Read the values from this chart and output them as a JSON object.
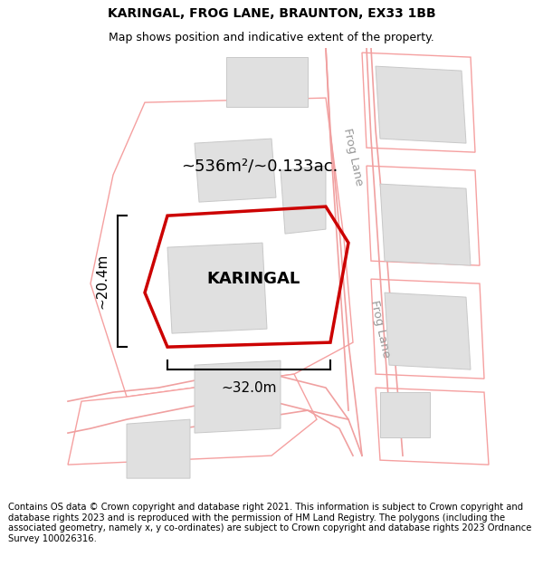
{
  "title_line1": "KARINGAL, FROG LANE, BRAUNTON, EX33 1BB",
  "title_line2": "Map shows position and indicative extent of the property.",
  "property_label": "KARINGAL",
  "area_label": "~536m²/~0.133ac.",
  "dim_height": "~20.4m",
  "dim_width": "~32.0m",
  "road_label": "Frog Lane",
  "copyright_text": "Contains OS data © Crown copyright and database right 2021. This information is subject to Crown copyright and database rights 2023 and is reproduced with the permission of HM Land Registry. The polygons (including the associated geometry, namely x, y co-ordinates) are subject to Crown copyright and database rights 2023 Ordnance Survey 100026316.",
  "bg_color": "#ffffff",
  "property_edge": "#cc0000",
  "surrounding_edge": "#f5a0a0",
  "surrounding_fill": "#ffffff",
  "building_fill": "#e0e0e0",
  "building_edge": "#c8c8c8",
  "road_color": "#f0a0a0",
  "title_fontsize": 10,
  "subtitle_fontsize": 9,
  "label_fontsize": 13,
  "area_fontsize": 13,
  "dim_fontsize": 11,
  "road_fontsize": 9.5,
  "copyright_fontsize": 7.2
}
